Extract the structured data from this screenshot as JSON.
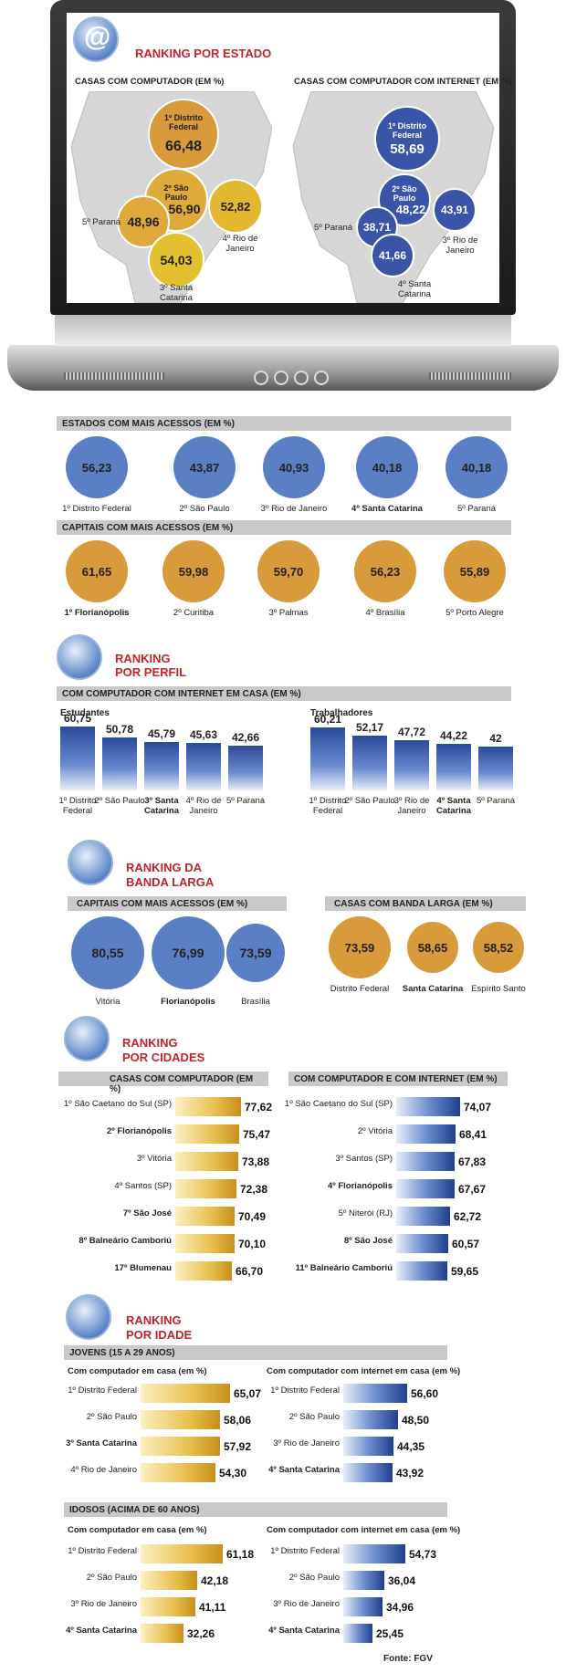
{
  "colors": {
    "blue": "#5b7fc4",
    "orange": "#d99a3c",
    "red_title": "#c0242c",
    "bar_gray": "#c9c9c9"
  },
  "icons": [
    "at-cursor-icon",
    "worker-cursor-icon",
    "monitor-cursor-icon",
    "city-cursor-icon",
    "person-cursor-icon"
  ],
  "estado": {
    "title": "RANKING POR ESTADO",
    "map1": {
      "title": "CASAS COM COMPUTADOR (EM %)",
      "items": [
        {
          "label": "1º Distrito Federal",
          "value": "66,48"
        },
        {
          "label": "2º São Paulo",
          "value": "56,90"
        },
        {
          "label": "3º Santa Catarina",
          "value": "54,03"
        },
        {
          "label": "4º Rio de Janeiro",
          "value": "52,82"
        },
        {
          "label": "5º Paraná",
          "value": "48,96"
        }
      ]
    },
    "map2": {
      "title": "CASAS COM COMPUTADOR COM INTERNET (EM %)",
      "items": [
        {
          "label": "1º Distrito Federal",
          "value": "58,69"
        },
        {
          "label": "2º São Paulo",
          "value": "48,22"
        },
        {
          "label": "3º Rio de Janeiro",
          "value": "43,91"
        },
        {
          "label": "4º Santa Catarina",
          "value": "41,66"
        },
        {
          "label": "5º Paraná",
          "value": "38,71"
        }
      ]
    }
  },
  "estados_acessos": {
    "title": "ESTADOS COM MAIS ACESSOS (EM %)",
    "items": [
      {
        "label": "1º Distrito Federal",
        "value": "56,23"
      },
      {
        "label": "2º São Paulo",
        "value": "43,87"
      },
      {
        "label": "3º Rio de Janeiro",
        "value": "40,93"
      },
      {
        "label": "4º Santa Catarina",
        "value": "40,18"
      },
      {
        "label": "5º Paraná",
        "value": "40,18"
      }
    ]
  },
  "capitais_acessos": {
    "title": "CAPITAIS COM MAIS ACESSOS (EM %)",
    "items": [
      {
        "label": "1º Florianópolis",
        "value": "61,65"
      },
      {
        "label": "2º Curitiba",
        "value": "59,98"
      },
      {
        "label": "3º Palmas",
        "value": "59,70"
      },
      {
        "label": "4º Brasília",
        "value": "56,23"
      },
      {
        "label": "5º Porto Alegre",
        "value": "55,89"
      }
    ]
  },
  "perfil": {
    "title1": "RANKING",
    "title2": "POR PERFIL",
    "bar_title": "COM COMPUTADOR COM INTERNET EM CASA (EM %)",
    "estudantes": {
      "title": "Estudantes",
      "items": [
        {
          "label": "1º Distrito Federal",
          "value": "60,75",
          "v": 60.75
        },
        {
          "label": "2º São Paulo",
          "value": "50,78",
          "v": 50.78
        },
        {
          "label": "3º Santa Catarina",
          "value": "45,79",
          "v": 45.79
        },
        {
          "label": "4º Rio de Janeiro",
          "value": "45,63",
          "v": 45.63
        },
        {
          "label": "5º Paraná",
          "value": "42,66",
          "v": 42.66
        }
      ]
    },
    "trabalhadores": {
      "title": "Trabalhadores",
      "items": [
        {
          "label": "1º Distrito Federal",
          "value": "60,21",
          "v": 60.21
        },
        {
          "label": "2º São Paulo",
          "value": "52,17",
          "v": 52.17
        },
        {
          "label": "3º Rio de Janeiro",
          "value": "47,72",
          "v": 47.72
        },
        {
          "label": "4º Santa Catarina",
          "value": "44,22",
          "v": 44.22
        },
        {
          "label": "5º Paraná",
          "value": "42",
          "v": 42
        }
      ]
    }
  },
  "banda": {
    "title1": "RANKING DA",
    "title2": "BANDA LARGA",
    "capitais": {
      "title": "CAPITAIS COM MAIS ACESSOS (EM %)",
      "items": [
        {
          "label": "Vitória",
          "value": "80,55"
        },
        {
          "label": "Florianópolis",
          "value": "76,99"
        },
        {
          "label": "Brasília",
          "value": "73,59"
        }
      ]
    },
    "casas": {
      "title": "CASAS COM BANDA LARGA (EM %)",
      "items": [
        {
          "label": "Distrito Federal",
          "value": "73,59"
        },
        {
          "label": "Santa Catarina",
          "value": "58,65"
        },
        {
          "label": "Espírito Santo",
          "value": "58,52"
        }
      ]
    }
  },
  "cidades": {
    "title1": "RANKING",
    "title2": "POR CIDADES",
    "left": {
      "title": "CASAS COM COMPUTADOR (EM %)",
      "items": [
        {
          "label": "1º São Caetano do Sul (SP)",
          "value": "77,62",
          "v": 77.62
        },
        {
          "label": "2º Florianópolis",
          "value": "75,47",
          "v": 75.47
        },
        {
          "label": "3º Vitória",
          "value": "73,88",
          "v": 73.88
        },
        {
          "label": "4º Santos (SP)",
          "value": "72,38",
          "v": 72.38
        },
        {
          "label": "7º São José",
          "value": "70,49",
          "v": 70.49
        },
        {
          "label": "8º Balneário Camboriú",
          "value": "70,10",
          "v": 70.1
        },
        {
          "label": "17º Blumenau",
          "value": "66,70",
          "v": 66.7
        }
      ]
    },
    "right": {
      "title": "COM COMPUTADOR E COM INTERNET (EM %)",
      "items": [
        {
          "label": "1º São Caetano do Sul (SP)",
          "value": "74,07",
          "v": 74.07
        },
        {
          "label": "2º Vitória",
          "value": "68,41",
          "v": 68.41
        },
        {
          "label": "3º Santos (SP)",
          "value": "67,83",
          "v": 67.83
        },
        {
          "label": "4º Florianópolis",
          "value": "67,67",
          "v": 67.67
        },
        {
          "label": "5º Niterói (RJ)",
          "value": "62,72",
          "v": 62.72
        },
        {
          "label": "8º São José",
          "value": "60,57",
          "v": 60.57
        },
        {
          "label": "11º Balneário Camboriú",
          "value": "59,65",
          "v": 59.65
        }
      ]
    }
  },
  "idade": {
    "title1": "RANKING",
    "title2": "POR IDADE",
    "jovens": {
      "title": "JOVENS (15 A 29 ANOS)",
      "left_title": "Com computador em casa (em %)",
      "right_title": "Com computador com internet em casa (em %)",
      "left": [
        {
          "label": "1º Distrito Federal",
          "value": "65,07",
          "v": 65.07
        },
        {
          "label": "2º São Paulo",
          "value": "58,06",
          "v": 58.06
        },
        {
          "label": "3º Santa Catarina",
          "value": "57,92",
          "v": 57.92
        },
        {
          "label": "4º Rio de Janeiro",
          "value": "54,30",
          "v": 54.3
        }
      ],
      "right": [
        {
          "label": "1º Distrito Federal",
          "value": "56,60",
          "v": 56.6
        },
        {
          "label": "2º São Paulo",
          "value": "48,50",
          "v": 48.5
        },
        {
          "label": "3º Rio de Janeiro",
          "value": "44,35",
          "v": 44.35
        },
        {
          "label": "4º Santa Catarina",
          "value": "43,92",
          "v": 43.92
        }
      ]
    },
    "idosos": {
      "title": "IDOSOS (ACIMA DE 60 ANOS)",
      "left_title": "Com computador em casa (em %)",
      "right_title": "Com computador com internet em casa (em %)",
      "left": [
        {
          "label": "1º Distrito Federal",
          "value": "61,18",
          "v": 61.18
        },
        {
          "label": "2º São Paulo",
          "value": "42,18",
          "v": 42.18
        },
        {
          "label": "3º Rio de Janeiro",
          "value": "41,11",
          "v": 41.11
        },
        {
          "label": "4º Santa Catarina",
          "value": "32,26",
          "v": 32.26
        }
      ],
      "right": [
        {
          "label": "1º Distrito Federal",
          "value": "54,73",
          "v": 54.73
        },
        {
          "label": "2º São Paulo",
          "value": "36,04",
          "v": 36.04
        },
        {
          "label": "3º Rio de Janeiro",
          "value": "34,96",
          "v": 34.96
        },
        {
          "label": "4º Santa Catarina",
          "value": "25,45",
          "v": 25.45
        }
      ]
    }
  },
  "source": "Fonte: FGV",
  "chart_data": [
    {
      "type": "bar",
      "title": "ESTADOS COM MAIS ACESSOS (EM %)",
      "categories": [
        "1º Distrito Federal",
        "2º São Paulo",
        "3º Rio de Janeiro",
        "4º Santa Catarina",
        "5º Paraná"
      ],
      "values": [
        56.23,
        43.87,
        40.93,
        40.18,
        40.18
      ]
    },
    {
      "type": "bar",
      "title": "CAPITAIS COM MAIS ACESSOS (EM %)",
      "categories": [
        "1º Florianópolis",
        "2º Curitiba",
        "3º Palmas",
        "4º Brasília",
        "5º Porto Alegre"
      ],
      "values": [
        61.65,
        59.98,
        59.7,
        56.23,
        55.89
      ]
    },
    {
      "type": "bar",
      "title": "COM COMPUTADOR COM INTERNET EM CASA (EM %)",
      "categories": [
        "1º Distrito Federal",
        "2º São Paulo",
        "3º",
        "4º",
        "5º Paraná"
      ],
      "series": [
        {
          "name": "Estudantes",
          "values": [
            60.75,
            50.78,
            45.79,
            45.63,
            42.66
          ]
        },
        {
          "name": "Trabalhadores",
          "values": [
            60.21,
            52.17,
            47.72,
            44.22,
            42
          ]
        }
      ]
    },
    {
      "type": "bar",
      "title": "CASAS COM COMPUTADOR (EM %)",
      "categories": [
        "1º São Caetano do Sul (SP)",
        "2º Florianópolis",
        "3º Vitória",
        "4º Santos (SP)",
        "7º São José",
        "8º Balneário Camboriú",
        "17º Blumenau"
      ],
      "values": [
        77.62,
        75.47,
        73.88,
        72.38,
        70.49,
        70.1,
        66.7
      ]
    },
    {
      "type": "bar",
      "title": "COM COMPUTADOR E COM INTERNET (EM %)",
      "categories": [
        "1º São Caetano do Sul (SP)",
        "2º Vitória",
        "3º Santos (SP)",
        "4º Florianópolis",
        "5º Niterói (RJ)",
        "8º São José",
        "11º Balneário Camboriú"
      ],
      "values": [
        74.07,
        68.41,
        67.83,
        67.67,
        62.72,
        60.57,
        59.65
      ]
    }
  ]
}
